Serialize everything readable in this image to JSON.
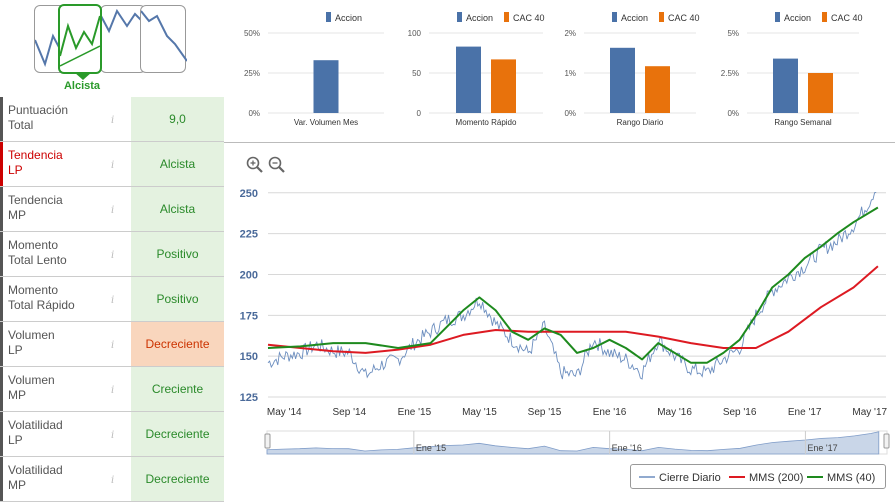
{
  "trend_widget": {
    "selected_label": "Alcista"
  },
  "indicators": [
    {
      "label1": "Puntuación",
      "label2": "Total",
      "value": "9,0",
      "style": "green",
      "name_color": "gray"
    },
    {
      "label1": "Tendencia",
      "label2": "LP",
      "value": "Alcista",
      "style": "green",
      "name_color": "red"
    },
    {
      "label1": "Tendencia",
      "label2": "MP",
      "value": "Alcista",
      "style": "green",
      "name_color": "gray"
    },
    {
      "label1": "Momento",
      "label2": "Total Lento",
      "value": "Positivo",
      "style": "green",
      "name_color": "gray"
    },
    {
      "label1": "Momento",
      "label2": "Total Rápido",
      "value": "Positivo",
      "style": "green",
      "name_color": "gray"
    },
    {
      "label1": "Volumen",
      "label2": "LP",
      "value": "Decreciente",
      "style": "orange",
      "name_color": "gray"
    },
    {
      "label1": "Volumen",
      "label2": "MP",
      "value": "Creciente",
      "style": "green",
      "name_color": "gray"
    },
    {
      "label1": "Volatilidad",
      "label2": "LP",
      "value": "Decreciente",
      "style": "green",
      "name_color": "gray"
    },
    {
      "label1": "Volatilidad",
      "label2": "MP",
      "value": "Decreciente",
      "style": "green",
      "name_color": "gray"
    }
  ],
  "colors": {
    "accion": "#4a72a8",
    "cac40": "#e8720c",
    "cierre": "#6c8ebf",
    "mms200": "#dd1a22",
    "mms40": "#1e8a1e",
    "navigator_fill": "#c9d6e8"
  },
  "chart_data": [
    {
      "type": "bar",
      "title": "",
      "xlabel": "Var. Volumen Mes",
      "ylabel": "",
      "ylim": [
        0,
        50
      ],
      "yticks": [
        "0%",
        "25%",
        "50%"
      ],
      "categories": [
        "Var. Volumen Mes"
      ],
      "series": [
        {
          "name": "Accion",
          "values": [
            33
          ]
        }
      ],
      "legend": [
        "Accion"
      ]
    },
    {
      "type": "bar",
      "title": "",
      "xlabel": "Momento Rápido",
      "ylabel": "",
      "ylim": [
        0,
        100
      ],
      "yticks": [
        "0",
        "50",
        "100"
      ],
      "categories": [
        "Momento Rápido"
      ],
      "series": [
        {
          "name": "Accion",
          "values": [
            83
          ]
        },
        {
          "name": "CAC 40",
          "values": [
            67
          ]
        }
      ],
      "legend": [
        "Accion",
        "CAC 40"
      ]
    },
    {
      "type": "bar",
      "title": "",
      "xlabel": "Rango Diario",
      "ylabel": "",
      "ylim": [
        0,
        2
      ],
      "yticks": [
        "0%",
        "1%",
        "2%"
      ],
      "categories": [
        "Rango Diario"
      ],
      "series": [
        {
          "name": "Accion",
          "values": [
            1.63
          ]
        },
        {
          "name": "CAC 40",
          "values": [
            1.17
          ]
        }
      ],
      "legend": [
        "Accion",
        "CAC 40"
      ]
    },
    {
      "type": "bar",
      "title": "",
      "xlabel": "Rango Semanal",
      "ylabel": "",
      "ylim": [
        0,
        5
      ],
      "yticks": [
        "0%",
        "2.5%",
        "5%"
      ],
      "categories": [
        "Rango Semanal"
      ],
      "series": [
        {
          "name": "Accion",
          "values": [
            3.4
          ]
        },
        {
          "name": "CAC 40",
          "values": [
            2.5
          ]
        }
      ],
      "legend": [
        "Accion",
        "CAC 40"
      ]
    },
    {
      "type": "line",
      "title": "",
      "xlabel": "",
      "ylabel": "",
      "ylim": [
        125,
        260
      ],
      "yticks": [
        125,
        150,
        175,
        200,
        225,
        250
      ],
      "xticks": [
        "May '14",
        "Sep '14",
        "Ene '15",
        "May '15",
        "Sep '15",
        "Ene '16",
        "May '16",
        "Sep '16",
        "Ene '17",
        "May '17"
      ],
      "navigator_ticks": [
        "Ene '15",
        "Ene '16",
        "Ene '17"
      ],
      "x_months": [
        0,
        4,
        8,
        12,
        16,
        20,
        24,
        28,
        32,
        36
      ],
      "series": [
        {
          "name": "Cierre Diario",
          "points": [
            [
              -1,
              146
            ],
            [
              0,
              150
            ],
            [
              1,
              152
            ],
            [
              2,
              157
            ],
            [
              3,
              153
            ],
            [
              4,
              152
            ],
            [
              5,
              138
            ],
            [
              6,
              145
            ],
            [
              7,
              148
            ],
            [
              8,
              158
            ],
            [
              9,
              165
            ],
            [
              10,
              172
            ],
            [
              11,
              175
            ],
            [
              12,
              185
            ],
            [
              13,
              170
            ],
            [
              14,
              160
            ],
            [
              15,
              152
            ],
            [
              16,
              168
            ],
            [
              17,
              140
            ],
            [
              18,
              138
            ],
            [
              19,
              160
            ],
            [
              20,
              152
            ],
            [
              21,
              148
            ],
            [
              22,
              140
            ],
            [
              23,
              160
            ],
            [
              24,
              150
            ],
            [
              25,
              142
            ],
            [
              26,
              140
            ],
            [
              27,
              148
            ],
            [
              28,
              155
            ],
            [
              29,
              175
            ],
            [
              30,
              190
            ],
            [
              31,
              198
            ],
            [
              32,
              205
            ],
            [
              33,
              215
            ],
            [
              34,
              220
            ],
            [
              35,
              230
            ],
            [
              36,
              245
            ],
            [
              36.5,
              256
            ]
          ]
        },
        {
          "name": "MMS (200)",
          "points": [
            [
              -1,
              157
            ],
            [
              1,
              155
            ],
            [
              3,
              153
            ],
            [
              5,
              152
            ],
            [
              7,
              154
            ],
            [
              9,
              157
            ],
            [
              11,
              163
            ],
            [
              13,
              166
            ],
            [
              15,
              165
            ],
            [
              17,
              165
            ],
            [
              19,
              165
            ],
            [
              21,
              165
            ],
            [
              23,
              162
            ],
            [
              25,
              158
            ],
            [
              27,
              155
            ],
            [
              29,
              155
            ],
            [
              31,
              165
            ],
            [
              33,
              180
            ],
            [
              35,
              192
            ],
            [
              36.5,
              205
            ]
          ]
        },
        {
          "name": "MMS (40)",
          "points": [
            [
              -1,
              155
            ],
            [
              1,
              156
            ],
            [
              3,
              158
            ],
            [
              5,
              158
            ],
            [
              7,
              155
            ],
            [
              9,
              158
            ],
            [
              10,
              168
            ],
            [
              11,
              178
            ],
            [
              12,
              186
            ],
            [
              13,
              178
            ],
            [
              14,
              165
            ],
            [
              15,
              160
            ],
            [
              16,
              167
            ],
            [
              17,
              163
            ],
            [
              18,
              152
            ],
            [
              19,
              155
            ],
            [
              20,
              160
            ],
            [
              21,
              155
            ],
            [
              22,
              148
            ],
            [
              23,
              158
            ],
            [
              24,
              152
            ],
            [
              25,
              146
            ],
            [
              26,
              146
            ],
            [
              27,
              152
            ],
            [
              28,
              160
            ],
            [
              29,
              175
            ],
            [
              30,
              192
            ],
            [
              31,
              200
            ],
            [
              32,
              210
            ],
            [
              33,
              217
            ],
            [
              34,
              225
            ],
            [
              35,
              232
            ],
            [
              36.5,
              241
            ]
          ]
        }
      ],
      "legend": [
        "Cierre Diario",
        "MMS (200)",
        "MMS (40)"
      ]
    }
  ]
}
